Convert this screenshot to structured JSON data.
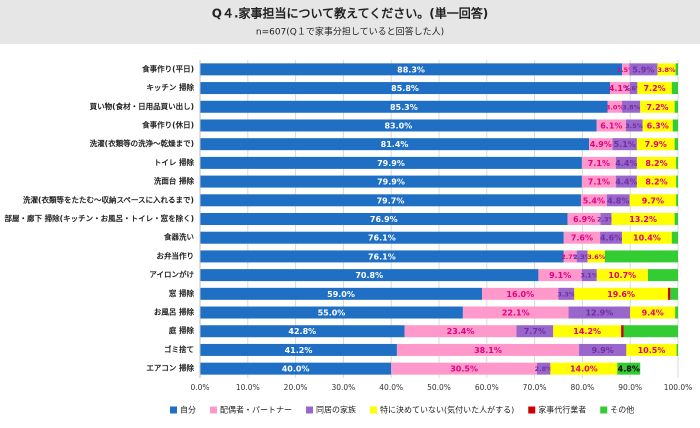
{
  "chart_data": {
    "type": "stacked-bar-horizontal",
    "title": "Q４.家事担当について教えてください。(単一回答)",
    "subtitle": "n=607(Q１で家事分担していると回答した人)",
    "categories": [
      "食事作り(平日)",
      "キッチン 掃除",
      "買い物(食材・日用品買い出し)",
      "食事作り(休日)",
      "洗濯(衣類等の洗浄～乾燥まで)",
      "トイレ 掃除",
      "洗面台 掃除",
      "洗濯(衣類等をたたむ～収納スペースに入れるまで)",
      "部屋・廊下 掃除(キッチン・お風呂・トイレ・窓を除く)",
      "食器洗い",
      "お弁当作り",
      "アイロンがけ",
      "窓 掃除",
      "お風呂 掃除",
      "庭 掃除",
      "ゴミ捨て",
      "エアコン 掃除"
    ],
    "series": [
      {
        "name": "自分",
        "color": "#1f6fc5",
        "values": [
          88.3,
          85.8,
          85.3,
          83.0,
          81.4,
          79.9,
          79.9,
          79.7,
          76.9,
          76.1,
          76.1,
          70.8,
          59.0,
          55.0,
          42.8,
          41.2,
          40.0
        ],
        "value_labels": [
          "88.3%",
          "85.8%",
          "85.3%",
          "83.0%",
          "81.4%",
          "79.9%",
          "79.9%",
          "79.7%",
          "76.9%",
          "76.1%",
          "76.1%",
          "70.8%",
          "59.0%",
          "55.0%",
          "42.8%",
          "41.2%",
          "40.0%"
        ]
      },
      {
        "name": "配偶者・パートナー",
        "color": "#ff99cc",
        "values": [
          1.5,
          4.1,
          3.0,
          6.1,
          4.9,
          7.1,
          7.1,
          5.4,
          6.9,
          7.6,
          2.7,
          9.1,
          16.0,
          22.1,
          23.4,
          38.1,
          30.5
        ],
        "value_labels": [
          "1.5%",
          "4.1%",
          "3.0%",
          "6.1%",
          "4.9%",
          "7.1%",
          "7.1%",
          "5.4%",
          "6.9%",
          "7.6%",
          "2.7%",
          "9.1%",
          "16.0%",
          "22.1%",
          "23.4%",
          "38.1%",
          "30.5%"
        ]
      },
      {
        "name": "同居の家族",
        "color": "#9966cc",
        "values": [
          5.9,
          1.6,
          3.8,
          3.5,
          5.1,
          4.4,
          4.4,
          4.8,
          2.3,
          4.6,
          2.3,
          3.1,
          3.3,
          12.9,
          7.7,
          9.9,
          2.8
        ],
        "value_labels": [
          "5.9%",
          "1.6%",
          "3.8%",
          "3.5%",
          "5.1%",
          "4.4%",
          "4.4%",
          "4.8%",
          "2.3%",
          "4.6%",
          "2.3%",
          "3.1%",
          "3.3%",
          "12.9%",
          "7.7%",
          "9.9%",
          "2.8%"
        ]
      },
      {
        "name": "特に決めていない(気付いた人がする)",
        "color": "#ffff00",
        "values": [
          3.8,
          7.2,
          7.2,
          6.3,
          7.9,
          8.2,
          8.2,
          9.7,
          13.2,
          10.4,
          3.6,
          10.7,
          19.6,
          9.4,
          14.2,
          10.5,
          14.0
        ],
        "value_labels": [
          "3.8%",
          "7.2%",
          "7.2%",
          "6.3%",
          "7.9%",
          "8.2%",
          "8.2%",
          "9.7%",
          "13.2%",
          "10.4%",
          "3.6%",
          "10.7%",
          "19.6%",
          "9.4%",
          "14.2%",
          "10.5%",
          "14.0%"
        ]
      },
      {
        "name": "家事代行業者",
        "color": "#cc0000",
        "values": [
          0,
          0,
          0,
          0,
          0,
          0,
          0,
          0,
          0,
          0,
          0,
          0,
          0.5,
          0,
          0.5,
          0,
          0
        ]
      },
      {
        "name": "その他",
        "color": "#33cc33",
        "values": [
          0.5,
          1.3,
          0.7,
          1.1,
          0.7,
          0.4,
          0.4,
          0.4,
          0.7,
          1.3,
          15.3,
          6.3,
          1.6,
          0.6,
          11.4,
          0.3,
          4.8
        ],
        "value_labels": [
          null,
          null,
          null,
          null,
          null,
          null,
          null,
          null,
          null,
          null,
          null,
          null,
          null,
          null,
          null,
          null,
          "4.8%"
        ]
      }
    ],
    "xlim": [
      0,
      100
    ],
    "xticks": [
      {
        "value": 0,
        "label": "0.0%"
      },
      {
        "value": 10,
        "label": "10.0%"
      },
      {
        "value": 20,
        "label": "20.0%"
      },
      {
        "value": 30,
        "label": "30.0%"
      },
      {
        "value": 40,
        "label": "40.0%"
      },
      {
        "value": 50,
        "label": "50.0%"
      },
      {
        "value": 60,
        "label": "60.0%"
      },
      {
        "value": 70,
        "label": "70.0%"
      },
      {
        "value": 80,
        "label": "80.0%"
      },
      {
        "value": 90,
        "label": "90.0%"
      },
      {
        "value": 100,
        "label": "100.0%"
      }
    ],
    "grid": true
  }
}
